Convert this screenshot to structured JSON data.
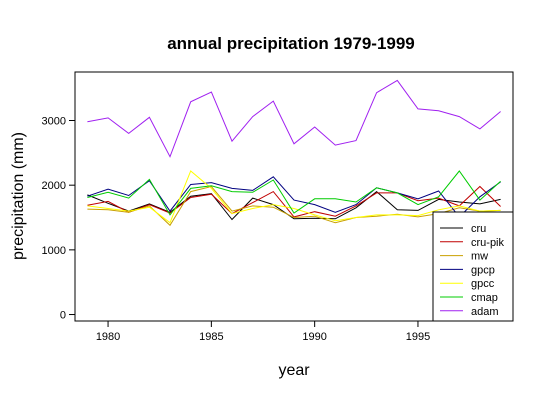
{
  "chart_data": {
    "type": "line",
    "title": "annual precipitation 1979-1999",
    "xlabel": "year",
    "ylabel": "precipitation (mm)",
    "xlim": [
      1978.4,
      1999.6
    ],
    "ylim": [
      -100,
      3750
    ],
    "xticks": [
      1980,
      1985,
      1990,
      1995
    ],
    "yticks": [
      0,
      1000,
      2000,
      3000
    ],
    "legend_position": "bottom-right",
    "grid": false,
    "x": [
      1979,
      1980,
      1981,
      1982,
      1983,
      1984,
      1985,
      1986,
      1987,
      1988,
      1989,
      1990,
      1991,
      1992,
      1993,
      1994,
      1995,
      1996,
      1997,
      1998,
      1999
    ],
    "series": [
      {
        "name": "cru",
        "color": "#000000",
        "values": [
          1850,
          1720,
          1600,
          1710,
          1580,
          1830,
          1870,
          1470,
          1800,
          1700,
          1480,
          1490,
          1480,
          1650,
          1900,
          1620,
          1610,
          1780,
          1740,
          1710,
          1780
        ]
      },
      {
        "name": "cru-pik",
        "color": "#c00000",
        "values": [
          1690,
          1750,
          1580,
          1700,
          1570,
          1810,
          1860,
          1560,
          1730,
          1900,
          1510,
          1590,
          1520,
          1680,
          1880,
          1880,
          1760,
          1800,
          1680,
          1980,
          1670
        ]
      },
      {
        "name": "mw",
        "color": "#c9a100",
        "values": [
          1630,
          1620,
          1580,
          1680,
          1380,
          1900,
          1980,
          1600,
          1680,
          1660,
          1500,
          1520,
          1420,
          1500,
          1520,
          1550,
          1510,
          1560,
          1650,
          1600,
          1610
        ]
      },
      {
        "name": "gpcp",
        "color": "#000080",
        "values": [
          1830,
          1940,
          1840,
          2070,
          1600,
          2010,
          2040,
          1950,
          1920,
          2130,
          1770,
          1700,
          1580,
          1700,
          1960,
          1880,
          1790,
          1910,
          1510,
          1820,
          2050
        ]
      },
      {
        "name": "gpcc",
        "color": "#ffff00",
        "values": [
          1680,
          1640,
          1600,
          1660,
          1420,
          2220,
          1950,
          1560,
          1640,
          1700,
          1640,
          1540,
          1450,
          1500,
          1540,
          1540,
          1530,
          1620,
          1680,
          1600,
          1610
        ]
      },
      {
        "name": "cmap",
        "color": "#00cc00",
        "values": [
          1810,
          1890,
          1800,
          2090,
          1540,
          1950,
          1990,
          1900,
          1890,
          2080,
          1570,
          1790,
          1790,
          1740,
          1960,
          1880,
          1700,
          1820,
          2220,
          1770,
          2060
        ]
      },
      {
        "name": "adam",
        "color": "#a020f0",
        "values": [
          2980,
          3040,
          2800,
          3050,
          2440,
          3290,
          3440,
          2680,
          3060,
          3300,
          2640,
          2900,
          2620,
          2690,
          3430,
          3620,
          3180,
          3150,
          3060,
          2870,
          3140
        ]
      }
    ]
  }
}
